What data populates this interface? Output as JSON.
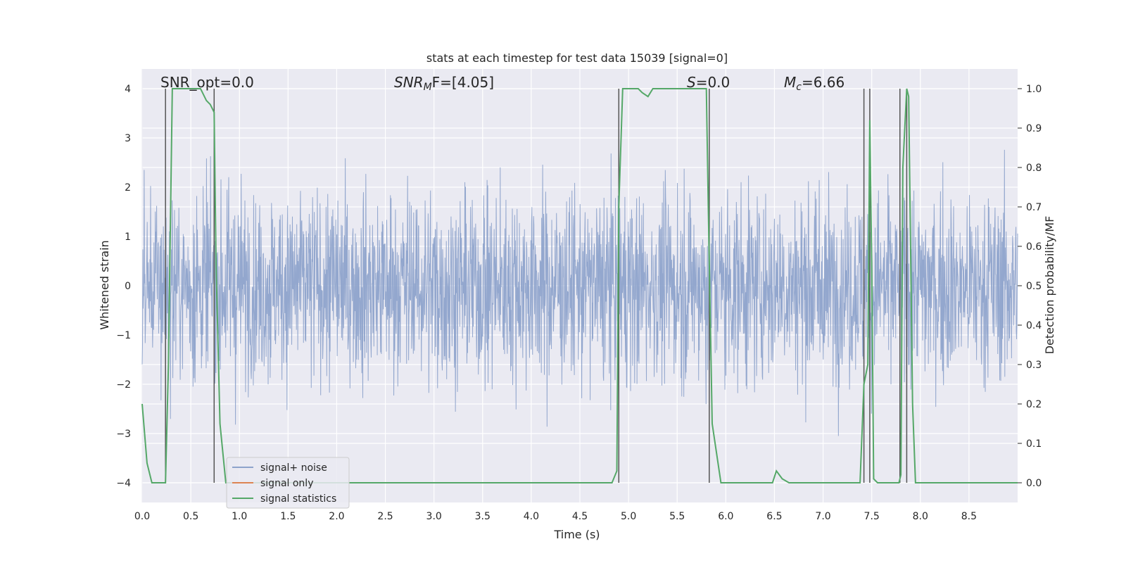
{
  "chart_data": {
    "type": "line",
    "title": "stats at each timestep for test data 15039 [signal=0]",
    "xlabel": "Time (s)",
    "ylabel": "Whitened strain",
    "y2label": "Detection probability/MF",
    "xlim": [
      0.0,
      9.0
    ],
    "ylim": [
      -4.4,
      4.4
    ],
    "y2lim": [
      -0.05,
      1.05
    ],
    "xticks": [
      "0.0",
      "0.5",
      "1.0",
      "1.5",
      "2.0",
      "2.5",
      "3.0",
      "3.5",
      "4.0",
      "4.5",
      "5.0",
      "5.5",
      "6.0",
      "6.5",
      "7.0",
      "7.5",
      "8.0",
      "8.5"
    ],
    "yticks": [
      "−4",
      "−3",
      "−2",
      "−1",
      "0",
      "1",
      "2",
      "3",
      "4"
    ],
    "y2ticks": [
      "0.0",
      "0.1",
      "0.2",
      "0.3",
      "0.4",
      "0.5",
      "0.6",
      "0.7",
      "0.8",
      "0.9",
      "1.0"
    ],
    "annotations": {
      "snr_opt": "SNR_opt=0.0",
      "snr_mf_base": "SNR",
      "snr_mf_sub": "M",
      "snr_mf_rest": "F=[4.05]",
      "s_label": "S",
      "s_value": "=0.0",
      "mc_base": "M",
      "mc_sub": "c",
      "mc_value": "=6.66"
    },
    "series": [
      {
        "name": "signal+ noise",
        "color": "#8ea3cb",
        "type": "noise",
        "amplitude_range": [
          -4.0,
          4.0
        ]
      },
      {
        "name": "signal only",
        "color": "#dd8452",
        "values": []
      },
      {
        "name": "signal statistics",
        "color": "#55a868",
        "x": [
          0.0,
          0.05,
          0.1,
          0.2,
          0.24,
          0.27,
          0.31,
          0.35,
          0.4,
          0.45,
          0.5,
          0.6,
          0.62,
          0.66,
          0.7,
          0.74,
          0.76,
          0.8,
          0.86,
          0.95,
          1.1,
          2.0,
          3.0,
          4.0,
          4.5,
          4.83,
          4.88,
          4.9,
          4.94,
          5.0,
          5.1,
          5.14,
          5.2,
          5.25,
          5.3,
          5.4,
          5.5,
          5.7,
          5.8,
          5.82,
          5.86,
          5.95,
          6.0,
          6.3,
          6.48,
          6.52,
          6.58,
          6.65,
          6.8,
          7.0,
          7.3,
          7.38,
          7.42,
          7.46,
          7.48,
          7.5,
          7.52,
          7.56,
          7.6,
          7.7,
          7.78,
          7.8,
          7.82,
          7.86,
          7.88,
          7.92,
          7.95,
          8.0,
          8.5,
          9.0
        ],
        "y": [
          0.2,
          0.05,
          0.0,
          0.0,
          0.0,
          0.3,
          1.0,
          1.0,
          1.0,
          1.0,
          1.0,
          1.0,
          0.99,
          0.97,
          0.96,
          0.94,
          0.55,
          0.15,
          0.0,
          0.0,
          0.0,
          0.0,
          0.0,
          0.0,
          0.0,
          0.0,
          0.03,
          0.7,
          1.0,
          1.0,
          1.0,
          0.99,
          0.98,
          1.0,
          1.0,
          1.0,
          1.0,
          1.0,
          1.0,
          0.7,
          0.15,
          0.0,
          0.0,
          0.0,
          0.0,
          0.03,
          0.01,
          0.0,
          0.0,
          0.0,
          0.0,
          0.0,
          0.25,
          0.3,
          0.92,
          0.55,
          0.01,
          0.0,
          0.0,
          0.0,
          0.0,
          0.02,
          0.8,
          1.0,
          0.98,
          0.2,
          0.0,
          0.0,
          0.0,
          0.0
        ]
      }
    ],
    "vlines": [
      0.24,
      0.74,
      4.9,
      5.83,
      7.42,
      7.48,
      7.79,
      7.86
    ],
    "legend": {
      "position": "lower-left",
      "entries": [
        "signal+ noise",
        "signal only",
        "signal statistics"
      ]
    }
  }
}
